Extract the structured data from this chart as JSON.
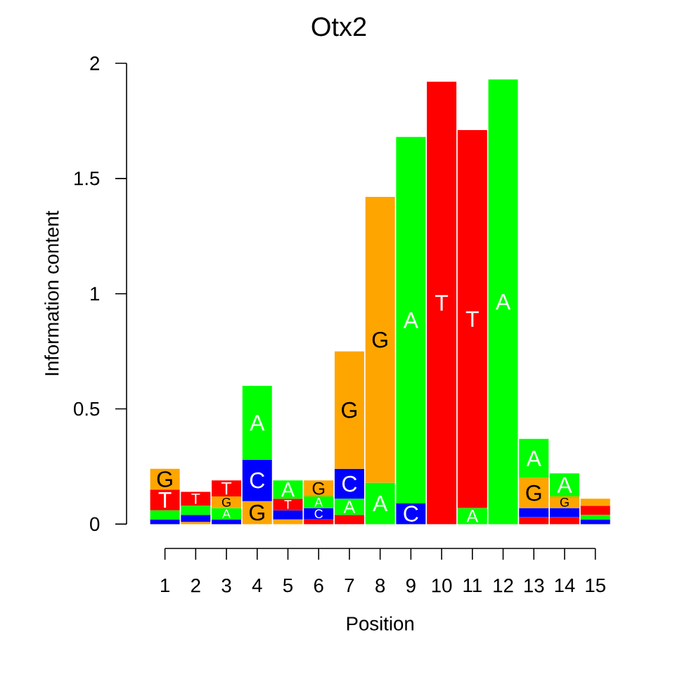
{
  "chart_data": {
    "type": "bar",
    "title": "Otx2",
    "xlabel": "Position",
    "ylabel": "Information content",
    "categories": [
      "1",
      "2",
      "3",
      "4",
      "5",
      "6",
      "7",
      "8",
      "9",
      "10",
      "11",
      "12",
      "13",
      "14",
      "15"
    ],
    "stacked": true,
    "ylim": [
      0,
      2
    ],
    "yticks": [
      0,
      0.5,
      1,
      1.5,
      2
    ],
    "series": [
      {
        "values": [
          0.02,
          0.01,
          0.02,
          0.1,
          0.02,
          0.02,
          0.04,
          0.18,
          0.09,
          1.92,
          0.07,
          1.93,
          0.03,
          0.03,
          0.02
        ],
        "colors": [
          "#0000ff",
          "#ffa500",
          "#0000ff",
          "#ffa500",
          "#ffa500",
          "#ff0000",
          "#ff0000",
          "#00ff00",
          "#0000ff",
          "#ff0000",
          "#00ff00",
          "#00ff00",
          "#ff0000",
          "#ff0000",
          "#0000ff"
        ],
        "value_labels": [
          null,
          null,
          null,
          "G",
          null,
          null,
          null,
          "A",
          "C",
          "T",
          "A",
          "A",
          null,
          null,
          null
        ]
      },
      {
        "values": [
          0.04,
          0.03,
          0.05,
          0.18,
          0.04,
          0.05,
          0.07,
          1.24,
          1.59,
          null,
          1.64,
          null,
          0.04,
          0.04,
          0.02
        ],
        "colors": [
          "#00ff00",
          "#0000ff",
          "#00ff00",
          "#0000ff",
          "#0000ff",
          "#0000ff",
          "#00ff00",
          "#ffa500",
          "#00ff00",
          null,
          "#ff0000",
          null,
          "#0000ff",
          "#0000ff",
          "#00ff00"
        ],
        "value_labels": [
          null,
          null,
          "A",
          "C",
          null,
          "C",
          "A",
          "G",
          "A",
          null,
          "T",
          null,
          null,
          null,
          null
        ]
      },
      {
        "values": [
          0.09,
          0.04,
          0.05,
          0.32,
          0.05,
          0.05,
          0.13,
          null,
          null,
          null,
          null,
          null,
          0.13,
          0.05,
          0.04
        ],
        "colors": [
          "#ff0000",
          "#00ff00",
          "#ffa500",
          "#00ff00",
          "#ff0000",
          "#00ff00",
          "#0000ff",
          null,
          null,
          null,
          null,
          null,
          "#ffa500",
          "#ffa500",
          "#ff0000"
        ],
        "value_labels": [
          "T",
          null,
          "G",
          "A",
          "T",
          "A",
          "C",
          null,
          null,
          null,
          null,
          null,
          "G",
          "G",
          null
        ]
      },
      {
        "values": [
          0.09,
          0.06,
          0.07,
          null,
          0.08,
          0.07,
          0.51,
          null,
          null,
          null,
          null,
          null,
          0.17,
          0.1,
          0.03
        ],
        "colors": [
          "#ffa500",
          "#ff0000",
          "#ff0000",
          null,
          "#00ff00",
          "#ffa500",
          "#ffa500",
          null,
          null,
          null,
          null,
          null,
          "#00ff00",
          "#00ff00",
          "#ffa500"
        ],
        "value_labels": [
          "G",
          "T",
          "T",
          null,
          "A",
          "G",
          "G",
          null,
          null,
          null,
          null,
          null,
          "A",
          "A",
          null
        ]
      }
    ]
  }
}
